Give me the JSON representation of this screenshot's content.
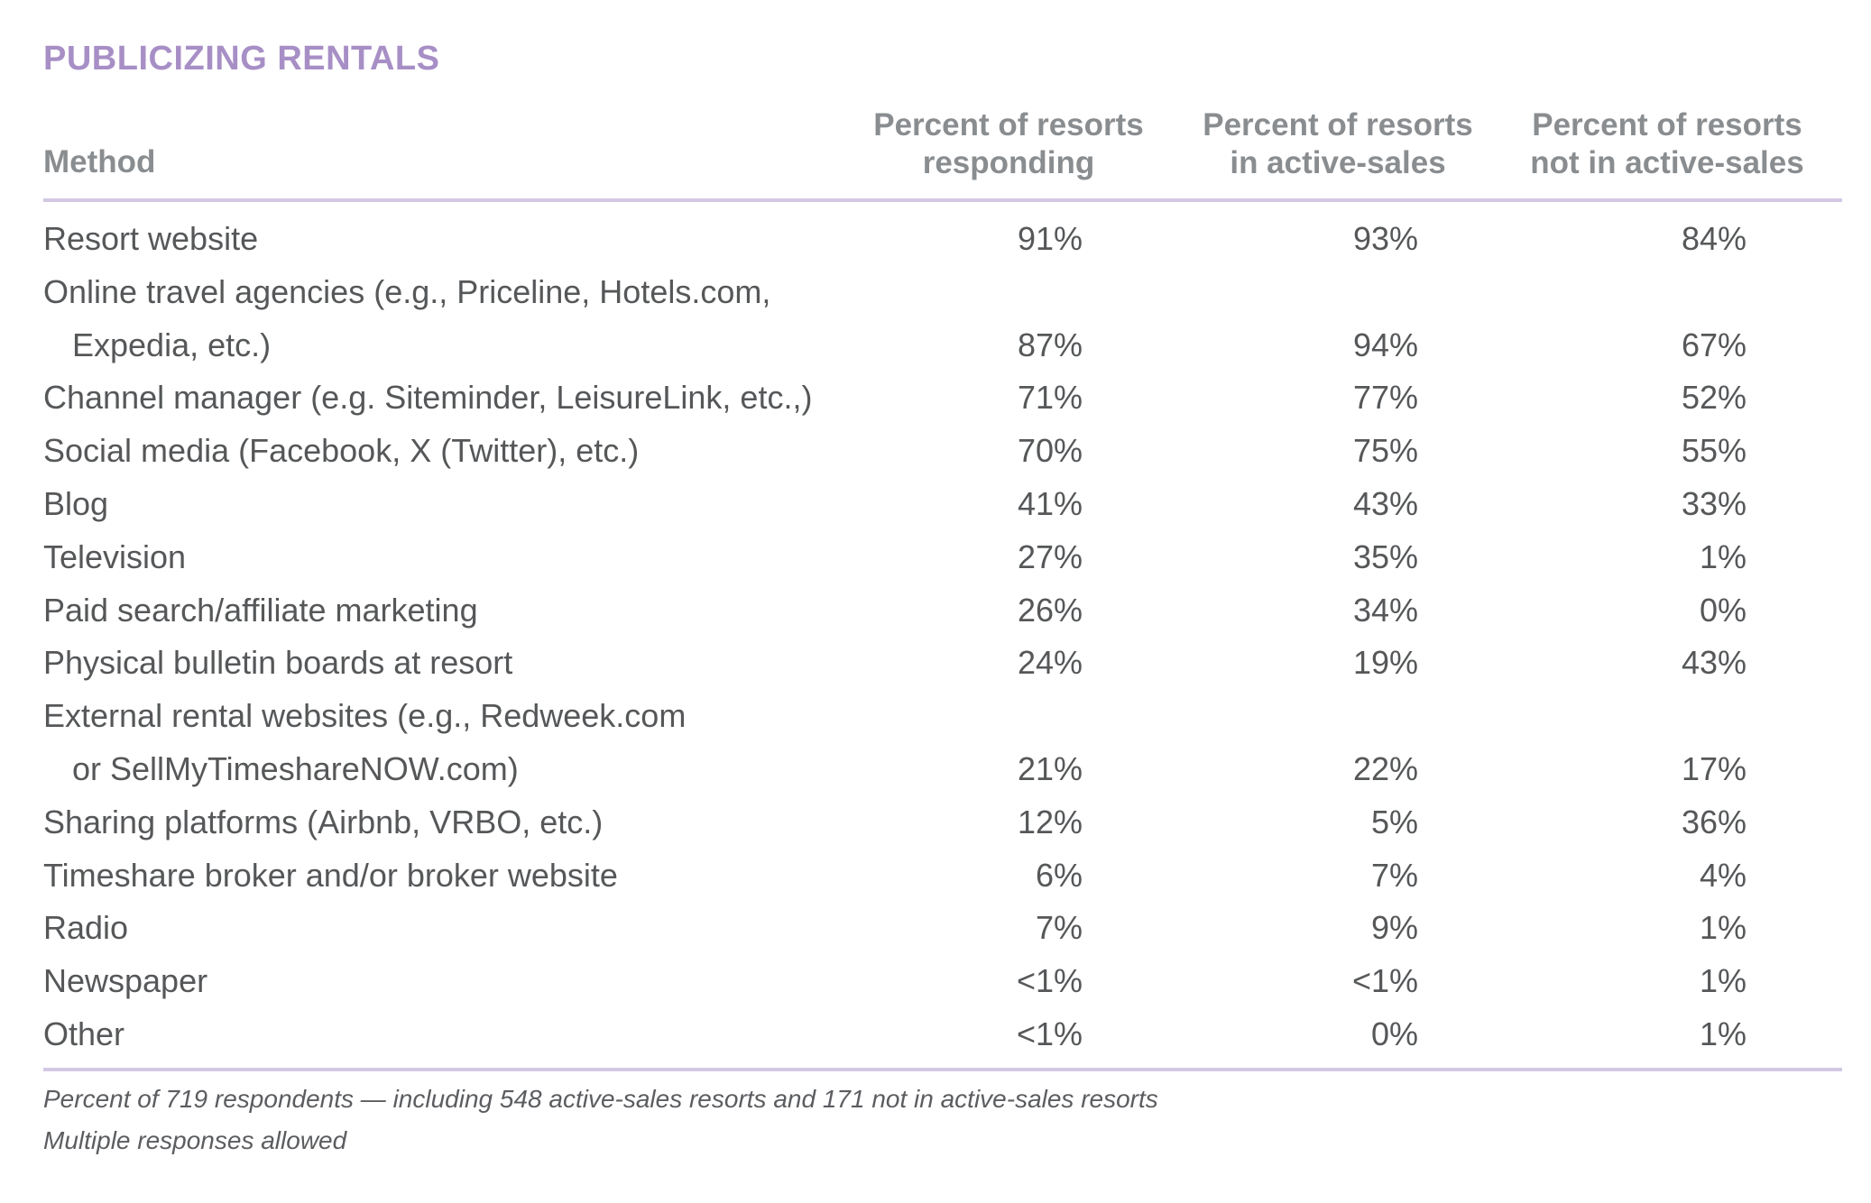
{
  "title": "PUBLICIZING RENTALS",
  "colors": {
    "accent": "#a78fc6",
    "rule": "#d3c9e4",
    "header_text": "#8a8d90",
    "body_text": "#555759"
  },
  "table": {
    "headers": {
      "method": "Method",
      "col1": "Percent of resorts responding",
      "col2": "Percent of resorts in active-sales",
      "col3": "Percent of resorts not in active-sales"
    },
    "rows": [
      {
        "lines": [
          "Resort website"
        ],
        "values": [
          "91%",
          "93%",
          "84%"
        ]
      },
      {
        "lines": [
          "Online travel agencies (e.g., Priceline, Hotels.com,",
          "Expedia, etc.)"
        ],
        "values": [
          "87%",
          "94%",
          "67%"
        ]
      },
      {
        "lines": [
          "Channel manager (e.g. Siteminder, LeisureLink, etc.,)"
        ],
        "values": [
          "71%",
          "77%",
          "52%"
        ]
      },
      {
        "lines": [
          "Social media (Facebook, X (Twitter), etc.)"
        ],
        "values": [
          "70%",
          "75%",
          "55%"
        ]
      },
      {
        "lines": [
          "Blog"
        ],
        "values": [
          "41%",
          "43%",
          "33%"
        ]
      },
      {
        "lines": [
          "Television"
        ],
        "values": [
          "27%",
          "35%",
          "1%"
        ]
      },
      {
        "lines": [
          "Paid search/affiliate marketing"
        ],
        "values": [
          "26%",
          "34%",
          "0%"
        ]
      },
      {
        "lines": [
          "Physical bulletin boards at resort"
        ],
        "values": [
          "24%",
          "19%",
          "43%"
        ]
      },
      {
        "lines": [
          "External rental websites (e.g., Redweek.com",
          "or SellMyTimeshareNOW.com)"
        ],
        "values": [
          "21%",
          "22%",
          "17%"
        ]
      },
      {
        "lines": [
          "Sharing platforms (Airbnb, VRBO, etc.)"
        ],
        "values": [
          "12%",
          "5%",
          "36%"
        ]
      },
      {
        "lines": [
          "Timeshare broker and/or broker website"
        ],
        "values": [
          "6%",
          "7%",
          "4%"
        ]
      },
      {
        "lines": [
          "Radio"
        ],
        "values": [
          "7%",
          "9%",
          "1%"
        ]
      },
      {
        "lines": [
          "Newspaper"
        ],
        "values": [
          "<1%",
          "<1%",
          "1%"
        ]
      },
      {
        "lines": [
          "Other"
        ],
        "values": [
          "<1%",
          "0%",
          "1%"
        ]
      }
    ]
  },
  "footnotes": [
    "Percent of 719 respondents — including 548 active-sales resorts and 171 not in active-sales resorts",
    "Multiple responses allowed"
  ]
}
